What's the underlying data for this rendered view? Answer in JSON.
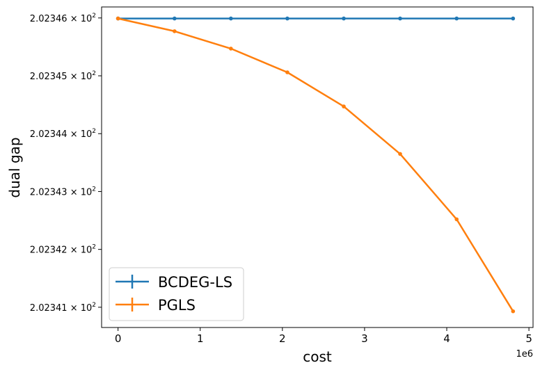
{
  "chart_data": {
    "type": "line",
    "title": "",
    "xlabel": "cost",
    "ylabel": "dual gap",
    "x_offset_label": "1e6",
    "x_scale_multiplier": 1000000,
    "xlim": [
      -0.2,
      5.05
    ],
    "ylim": [
      202.34065,
      202.34619
    ],
    "y_scale": "log",
    "grid": false,
    "legend_position": "lower-left",
    "x_ticks": [
      {
        "value": 0,
        "label": "0"
      },
      {
        "value": 1,
        "label": "1"
      },
      {
        "value": 2,
        "label": "2"
      },
      {
        "value": 3,
        "label": "3"
      },
      {
        "value": 4,
        "label": "4"
      },
      {
        "value": 5,
        "label": "5"
      }
    ],
    "y_ticks": [
      {
        "value": 202.346,
        "mantissa": "2.02346",
        "times": "×",
        "base": "10",
        "exp": "2"
      },
      {
        "value": 202.345,
        "mantissa": "2.02345",
        "times": "×",
        "base": "10",
        "exp": "2"
      },
      {
        "value": 202.344,
        "mantissa": "2.02344",
        "times": "×",
        "base": "10",
        "exp": "2"
      },
      {
        "value": 202.343,
        "mantissa": "2.02343",
        "times": "×",
        "base": "10",
        "exp": "2"
      },
      {
        "value": 202.342,
        "mantissa": "2.02342",
        "times": "×",
        "base": "10",
        "exp": "2"
      },
      {
        "value": 202.341,
        "mantissa": "2.02341",
        "times": "×",
        "base": "10",
        "exp": "2"
      }
    ],
    "series": [
      {
        "name": "BCDEG-LS",
        "color": "#1f77b4",
        "x": [
          0,
          0.687,
          1.373,
          2.06,
          2.747,
          3.433,
          4.12,
          4.807
        ],
        "y": [
          202.34599,
          202.34599,
          202.34599,
          202.34599,
          202.34599,
          202.34599,
          202.34599,
          202.34599
        ]
      },
      {
        "name": "PGLS",
        "color": "#ff7f0e",
        "x": [
          0,
          0.687,
          1.373,
          2.06,
          2.747,
          3.433,
          4.12,
          4.807
        ],
        "y": [
          202.34599,
          202.34577,
          202.34547,
          202.34506,
          202.34447,
          202.34365,
          202.34252,
          202.34093
        ]
      }
    ]
  }
}
